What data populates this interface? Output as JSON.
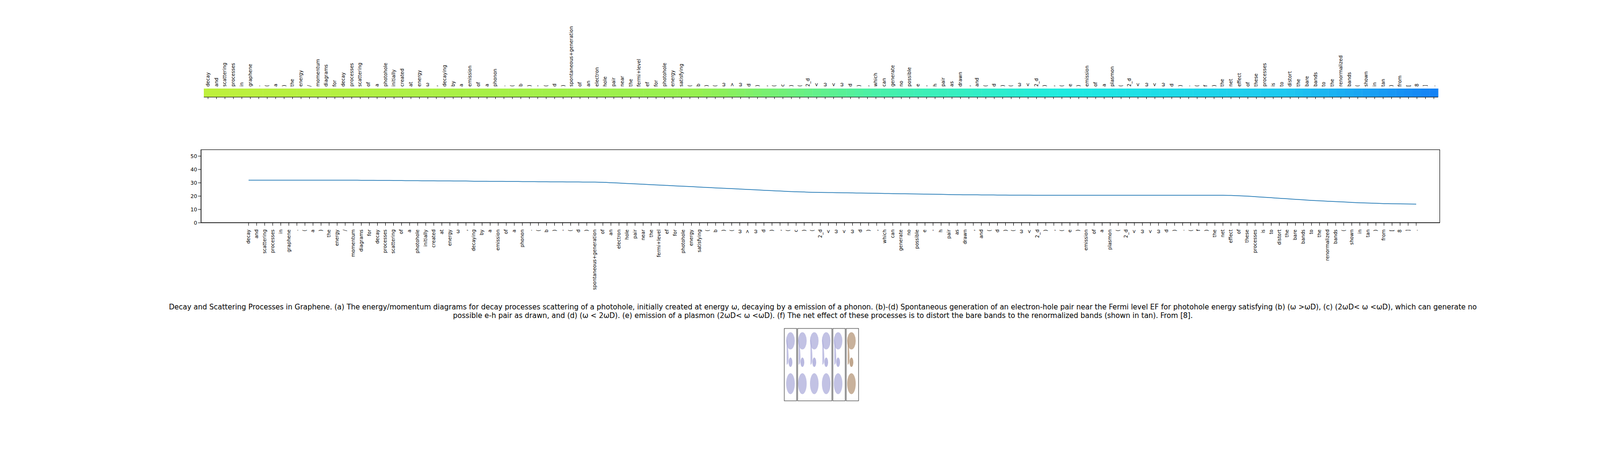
{
  "token_strip": {
    "tokens": [
      "decay",
      "and",
      "scattering",
      "processes",
      "in",
      "graphene",
      ".",
      "(",
      "a",
      ")",
      "the",
      "energy",
      "/",
      "momentum",
      "diagrams",
      "for",
      "decay",
      "processes",
      "scattering",
      "of",
      "a",
      "photohole",
      "initially",
      "created",
      "at",
      "energy",
      "ω",
      ",",
      "decaying",
      "by",
      "a",
      "emission",
      "of",
      "a",
      "phonon",
      ".",
      "(",
      "b",
      ")",
      "-",
      "(",
      "d",
      ")",
      "spontaneous+generation",
      "of",
      "an",
      "electron",
      "hole",
      "pair",
      "near",
      "the",
      "fermi+level",
      "ef",
      "for",
      "photohole",
      "energy",
      "satisfying",
      "(",
      "b",
      ")",
      "(",
      "ω",
      ">",
      "ω",
      "d",
      ")",
      ",",
      "(",
      "c",
      ")",
      "(",
      "2_d",
      "<",
      "ω",
      "<",
      "ω",
      "d",
      ")",
      ",",
      "which",
      "can",
      "generate",
      "no",
      "possible",
      "e",
      "-",
      "h",
      "pair",
      "as",
      "drawn",
      ",",
      "and",
      "(",
      "d",
      ")",
      "(",
      "ω",
      "<",
      "2_d",
      ")",
      ",",
      "(",
      "e",
      ")",
      "emission",
      "of",
      "a",
      "plasmon",
      "(",
      "2_d",
      "<",
      "ω",
      "<",
      "ω",
      "d",
      ")",
      ".",
      "(",
      "f",
      ")",
      "the",
      "net",
      "effect",
      "of",
      "these",
      "processes",
      "is",
      "to",
      "distort",
      "the",
      "bare",
      "bands",
      "to",
      "the",
      "renormalized",
      "bands",
      "(",
      "shown",
      "in",
      "tan",
      ")",
      "from",
      "[",
      "8",
      "]",
      "."
    ]
  },
  "chart_data": {
    "type": "line",
    "color": "#1f77b4",
    "categories": [
      "decay",
      "and",
      "scattering",
      "processes",
      "in",
      "graphene",
      ".",
      "(",
      "a",
      ")",
      "the",
      "energy",
      "/",
      "momentum",
      "diagrams",
      "for",
      "decay",
      "processes",
      "scattering",
      "of",
      "a",
      "photohole",
      "initially",
      "created",
      "at",
      "energy",
      "ω",
      ",",
      "decaying",
      "by",
      "a",
      "emission",
      "of",
      "a",
      "phonon",
      ".",
      "(",
      "b",
      ")",
      "-",
      "(",
      "d",
      ")",
      "spontaneous+generation",
      "of",
      "an",
      "electron",
      "hole",
      "pair",
      "near",
      "the",
      "fermi+level",
      "ef",
      "for",
      "photohole",
      "energy",
      "satisfying",
      "(",
      "b",
      ")",
      "(",
      "ω",
      ">",
      "ω",
      "d",
      ")",
      ",",
      "(",
      "c",
      ")",
      "(",
      "2_d",
      "<",
      "ω",
      "<",
      "ω",
      "d",
      ")",
      ",",
      "which",
      "can",
      "generate",
      "no",
      "possible",
      "e",
      "-",
      "h",
      "pair",
      "as",
      "drawn",
      ",",
      "and",
      "(",
      "d",
      ")",
      "(",
      "ω",
      "<",
      "2_d",
      ")",
      ",",
      "(",
      "e",
      ")",
      "emission",
      "of",
      "a",
      "plasmon",
      "(",
      "2_d",
      "<",
      "ω",
      "<",
      "ω",
      "d",
      ")",
      ".",
      "(",
      "f",
      ")",
      "the",
      "net",
      "effect",
      "of",
      "these",
      "processes",
      "is",
      "to",
      "distort",
      "the",
      "bare",
      "bands",
      "to",
      "the",
      "renormalized",
      "bands",
      "(",
      "shown",
      "in",
      "tan",
      ")",
      "from",
      "[",
      "8",
      "]",
      "."
    ],
    "values": [
      32,
      32,
      32,
      32,
      32,
      32,
      32,
      32,
      32,
      32,
      32,
      32,
      32,
      32,
      31.9,
      31.9,
      31.8,
      31.8,
      31.7,
      31.7,
      31.6,
      31.6,
      31.5,
      31.5,
      31.4,
      31.4,
      31.3,
      31.3,
      31.2,
      31.2,
      31.1,
      31.1,
      31,
      31,
      30.9,
      30.9,
      30.8,
      30.8,
      30.7,
      30.7,
      30.6,
      30.6,
      30.5,
      30.5,
      30.4,
      30.1,
      29.8,
      29.5,
      29.2,
      28.9,
      28.6,
      28.3,
      28,
      27.7,
      27.4,
      27.1,
      26.8,
      26.5,
      26.2,
      25.9,
      25.6,
      25.3,
      25,
      24.7,
      24.4,
      24.1,
      23.8,
      23.5,
      23.3,
      23.1,
      22.9,
      22.8,
      22.7,
      22.6,
      22.5,
      22.4,
      22.3,
      22.2,
      22.1,
      22,
      21.9,
      21.8,
      21.7,
      21.6,
      21.5,
      21.4,
      21.3,
      21.2,
      21.1,
      21,
      21,
      20.9,
      20.9,
      20.8,
      20.8,
      20.7,
      20.7,
      20.7,
      20.6,
      20.6,
      20.6,
      20.6,
      20.6,
      20.6,
      20.6,
      20.6,
      20.6,
      20.6,
      20.6,
      20.6,
      20.6,
      20.6,
      20.6,
      20.6,
      20.6,
      20.6,
      20.6,
      20.6,
      20.6,
      20.6,
      20.6,
      20.6,
      20.5,
      20.3,
      20,
      19.6,
      19.2,
      18.8,
      18.4,
      18,
      17.6,
      17.2,
      16.8,
      16.5,
      16.2,
      15.9,
      15.6,
      15.3,
      15,
      14.8,
      14.6,
      14.4,
      14.3,
      14.2,
      14.1,
      14
    ],
    "ylim": [
      0,
      55
    ],
    "yticks": [
      0,
      10,
      20,
      30,
      40,
      50
    ]
  },
  "caption": "Decay and Scattering Processes in Graphene. (a) The energy/momentum diagrams for decay processes scattering of a photohole, initially created at energy ω, decaying by a emission of a phonon. (b)-(d) Spontaneous generation of an electron-hole pair near the Fermi level EF for photohole energy satisfying (b) (ω >ωD), (c) (2ωD< ω <ωD), which can generate no possible e-h pair as drawn, and (d) (ω < 2ωD). (e) emission of a plasmon (2ωD< ω <ωD). (f) The net effect of these processes is to distort the bare bands to the renormalized bands (shown in tan). From [8]."
}
